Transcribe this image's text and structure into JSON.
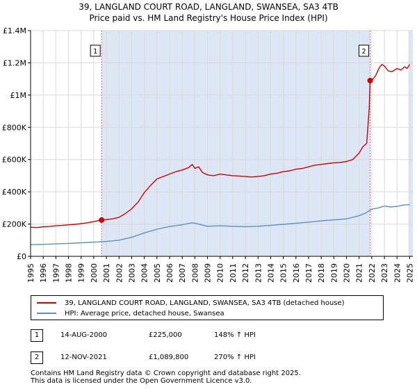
{
  "title": "39, LANGLAND COURT ROAD, LANGLAND, SWANSEA, SA3 4TB",
  "subtitle": "Price paid vs. HM Land Registry's House Price Index (HPI)",
  "colors": {
    "property": "#cc0000",
    "hpi": "#5b8fc9",
    "shade": "#dde6f5",
    "grid": "#d9d9d9",
    "marker_line": "#e06060"
  },
  "chart_data": {
    "type": "line",
    "title": "39, LANGLAND COURT ROAD, LANGLAND, SWANSEA, SA3 4TB",
    "subtitle": "Price paid vs. HM Land Registry's House Price Index (HPI)",
    "xlim": [
      1995,
      2025.25
    ],
    "ylim": [
      0,
      1400000
    ],
    "y_ticks": [
      0,
      200000,
      400000,
      600000,
      800000,
      1000000,
      1200000,
      1400000
    ],
    "y_tick_labels": [
      "£0",
      "£200K",
      "£400K",
      "£600K",
      "£800K",
      "£1M",
      "£1.2M",
      "£1.4M"
    ],
    "x_ticks": [
      1995,
      1996,
      1997,
      1998,
      1999,
      2000,
      2001,
      2002,
      2003,
      2004,
      2005,
      2006,
      2007,
      2008,
      2009,
      2010,
      2011,
      2012,
      2013,
      2014,
      2015,
      2016,
      2017,
      2018,
      2019,
      2020,
      2021,
      2022,
      2023,
      2024,
      2025
    ],
    "x_tick_labels": [
      "1995",
      "1996",
      "1997",
      "1998",
      "1999",
      "2000",
      "2001",
      "2002",
      "2003",
      "2004",
      "2005",
      "2006",
      "2007",
      "2008",
      "2009",
      "2010",
      "2011",
      "2012",
      "2013",
      "2014",
      "2015",
      "2016",
      "2017",
      "2018",
      "2019",
      "2020",
      "2021",
      "2022",
      "2023",
      "2024",
      "2025"
    ],
    "shaded_regions": [
      [
        2000.62,
        2021.87
      ],
      [
        2024.9,
        2025.25
      ]
    ],
    "series": [
      {
        "name": "39, LANGLAND COURT ROAD, LANGLAND, SWANSEA, SA3 4TB (detached house)",
        "color": "#cc0000",
        "x": [
          1995,
          1995.5,
          1996,
          1996.5,
          1997,
          1997.5,
          1998,
          1998.5,
          1999,
          1999.5,
          2000,
          2000.62,
          2001,
          2001.5,
          2002,
          2002.5,
          2003,
          2003.5,
          2004,
          2004.5,
          2005,
          2005.5,
          2006,
          2006.5,
          2007,
          2007.5,
          2007.8,
          2008,
          2008.3,
          2008.6,
          2009,
          2009.5,
          2010,
          2010.5,
          2011,
          2011.5,
          2012,
          2012.5,
          2013,
          2013.5,
          2014,
          2014.5,
          2015,
          2015.5,
          2016,
          2016.5,
          2017,
          2017.5,
          2018,
          2018.5,
          2019,
          2019.5,
          2020,
          2020.5,
          2021,
          2021.3,
          2021.6,
          2021.8,
          2021.87,
          2022,
          2022.3,
          2022.6,
          2022.8,
          2023,
          2023.3,
          2023.6,
          2024,
          2024.3,
          2024.6,
          2024.8,
          2025
        ],
        "y": [
          180000,
          178000,
          183000,
          185000,
          190000,
          192000,
          195000,
          198000,
          203000,
          208000,
          215000,
          225000,
          228000,
          232000,
          242000,
          265000,
          295000,
          335000,
          395000,
          440000,
          480000,
          495000,
          510000,
          525000,
          535000,
          550000,
          570000,
          545000,
          555000,
          520000,
          505000,
          500000,
          510000,
          505000,
          500000,
          498000,
          495000,
          492000,
          495000,
          500000,
          510000,
          515000,
          525000,
          530000,
          540000,
          545000,
          555000,
          565000,
          570000,
          575000,
          580000,
          582000,
          588000,
          600000,
          640000,
          680000,
          700000,
          920000,
          1089800,
          1090000,
          1120000,
          1170000,
          1190000,
          1180000,
          1150000,
          1145000,
          1165000,
          1155000,
          1175000,
          1165000,
          1190000
        ]
      },
      {
        "name": "HPI: Average price, detached house, Swansea",
        "color": "#5b8fc9",
        "x": [
          1995,
          1996,
          1997,
          1998,
          1999,
          2000,
          2001,
          2002,
          2003,
          2004,
          2005,
          2006,
          2007,
          2007.8,
          2008.3,
          2009,
          2010,
          2011,
          2012,
          2013,
          2014,
          2015,
          2016,
          2017,
          2018,
          2019,
          2020,
          2021,
          2021.5,
          2022,
          2022.5,
          2023,
          2023.5,
          2024,
          2024.5,
          2025
        ],
        "y": [
          72000,
          74000,
          77000,
          80000,
          84000,
          88000,
          92000,
          100000,
          118000,
          145000,
          168000,
          185000,
          196000,
          208000,
          200000,
          186000,
          190000,
          186000,
          184000,
          186000,
          192000,
          198000,
          205000,
          212000,
          220000,
          226000,
          232000,
          252000,
          268000,
          292000,
          300000,
          312000,
          306000,
          310000,
          318000,
          320000
        ]
      }
    ],
    "transactions": [
      {
        "id": "1",
        "date": "14-AUG-2000",
        "x": 2000.62,
        "price": 225000,
        "price_label": "£225,000",
        "hpi": "148% ↑ HPI"
      },
      {
        "id": "2",
        "date": "12-NOV-2021",
        "x": 2021.87,
        "price": 1089800,
        "price_label": "£1,089,800",
        "hpi": "270% ↑ HPI"
      }
    ]
  },
  "legend": {
    "property_label": "39, LANGLAND COURT ROAD, LANGLAND, SWANSEA, SA3 4TB (detached house)",
    "hpi_label": "HPI: Average price, detached house, Swansea"
  },
  "table": [
    {
      "id": "1",
      "date": "14-AUG-2000",
      "price": "£225,000",
      "hpi": "148% ↑ HPI"
    },
    {
      "id": "2",
      "date": "12-NOV-2021",
      "price": "£1,089,800",
      "hpi": "270% ↑ HPI"
    }
  ],
  "footer": {
    "line1": "Contains HM Land Registry data © Crown copyright and database right 2025.",
    "line2": "This data is licensed under the Open Government Licence v3.0."
  }
}
